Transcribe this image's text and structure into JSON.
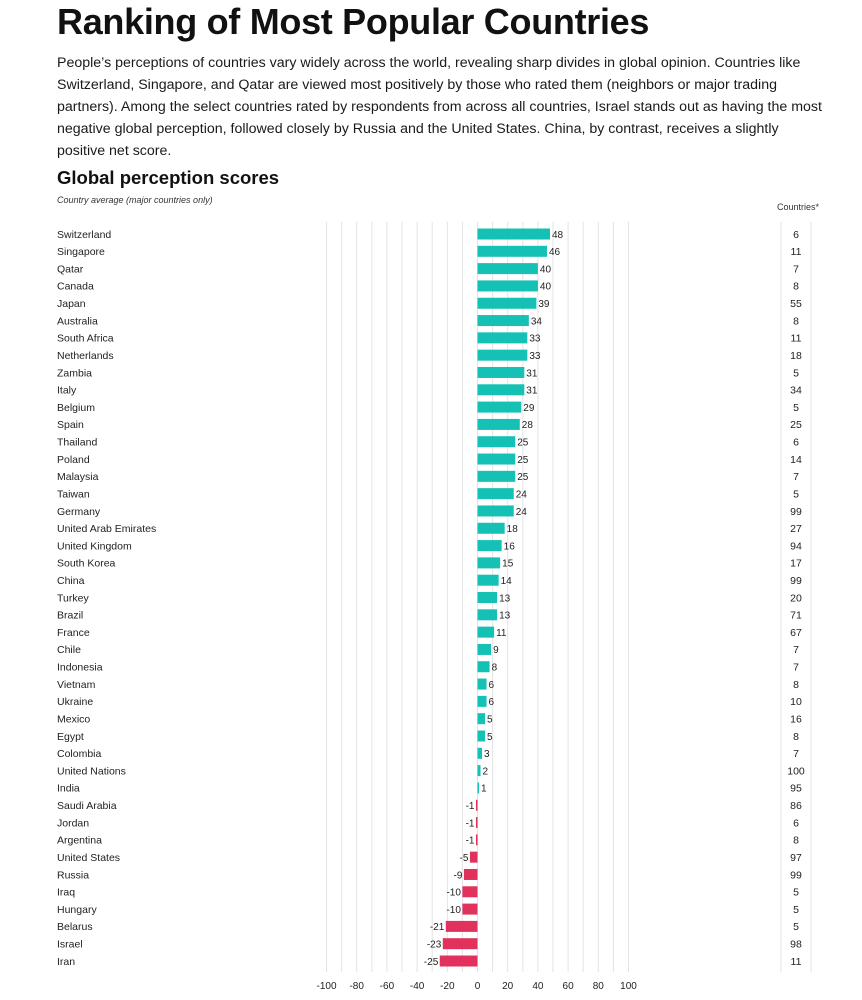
{
  "page": {
    "title": "Ranking of Most Popular Countries",
    "description": "People’s perceptions of countries vary widely across the world, revealing sharp divides in global opinion. Countries like Switzerland, Singapore, and Qatar are viewed most positively by those who rated them (neighbors or major trading partners). Among the select countries rated by respondents from across all countries, Israel stands out as having the most negative global perception, followed closely by Russia and the United States. China, by contrast, receives a slightly positive net score.",
    "chart_title": "Global perception scores",
    "chart_note": "Country average (major countries only)",
    "count_header": "Countries*"
  },
  "colors": {
    "positive": "#14c1b4",
    "negative": "#e0325c",
    "grid": "#e3e3e3"
  },
  "chart_data": {
    "type": "bar",
    "orientation": "horizontal",
    "title": "Global perception scores",
    "subtitle": "Country average (major countries only)",
    "xlim": [
      -100,
      100
    ],
    "xticks": [
      -100,
      -80,
      -60,
      -40,
      -20,
      0,
      20,
      40,
      60,
      80,
      100
    ],
    "categories": [
      "Switzerland",
      "Singapore",
      "Qatar",
      "Canada",
      "Japan",
      "Australia",
      "South Africa",
      "Netherlands",
      "Zambia",
      "Italy",
      "Belgium",
      "Spain",
      "Thailand",
      "Poland",
      "Malaysia",
      "Taiwan",
      "Germany",
      "United Arab Emirates",
      "United Kingdom",
      "South Korea",
      "China",
      "Turkey",
      "Brazil",
      "France",
      "Chile",
      "Indonesia",
      "Vietnam",
      "Ukraine",
      "Mexico",
      "Egypt",
      "Colombia",
      "United Nations",
      "India",
      "Saudi Arabia",
      "Jordan",
      "Argentina",
      "United States",
      "Russia",
      "Iraq",
      "Hungary",
      "Belarus",
      "Israel",
      "Iran"
    ],
    "values": [
      48,
      46,
      40,
      40,
      39,
      34,
      33,
      33,
      31,
      31,
      29,
      28,
      25,
      25,
      25,
      24,
      24,
      18,
      16,
      15,
      14,
      13,
      13,
      11,
      9,
      8,
      6,
      6,
      5,
      5,
      3,
      2,
      1,
      -1,
      -1,
      -1,
      -5,
      -9,
      -10,
      -10,
      -21,
      -23,
      -25
    ],
    "countries_label": "Countries*",
    "countries": [
      6,
      11,
      7,
      8,
      55,
      8,
      11,
      18,
      5,
      34,
      5,
      25,
      6,
      14,
      7,
      5,
      99,
      27,
      94,
      17,
      99,
      20,
      71,
      67,
      7,
      7,
      8,
      10,
      16,
      8,
      7,
      100,
      95,
      86,
      6,
      8,
      97,
      99,
      5,
      5,
      5,
      98,
      11
    ]
  }
}
